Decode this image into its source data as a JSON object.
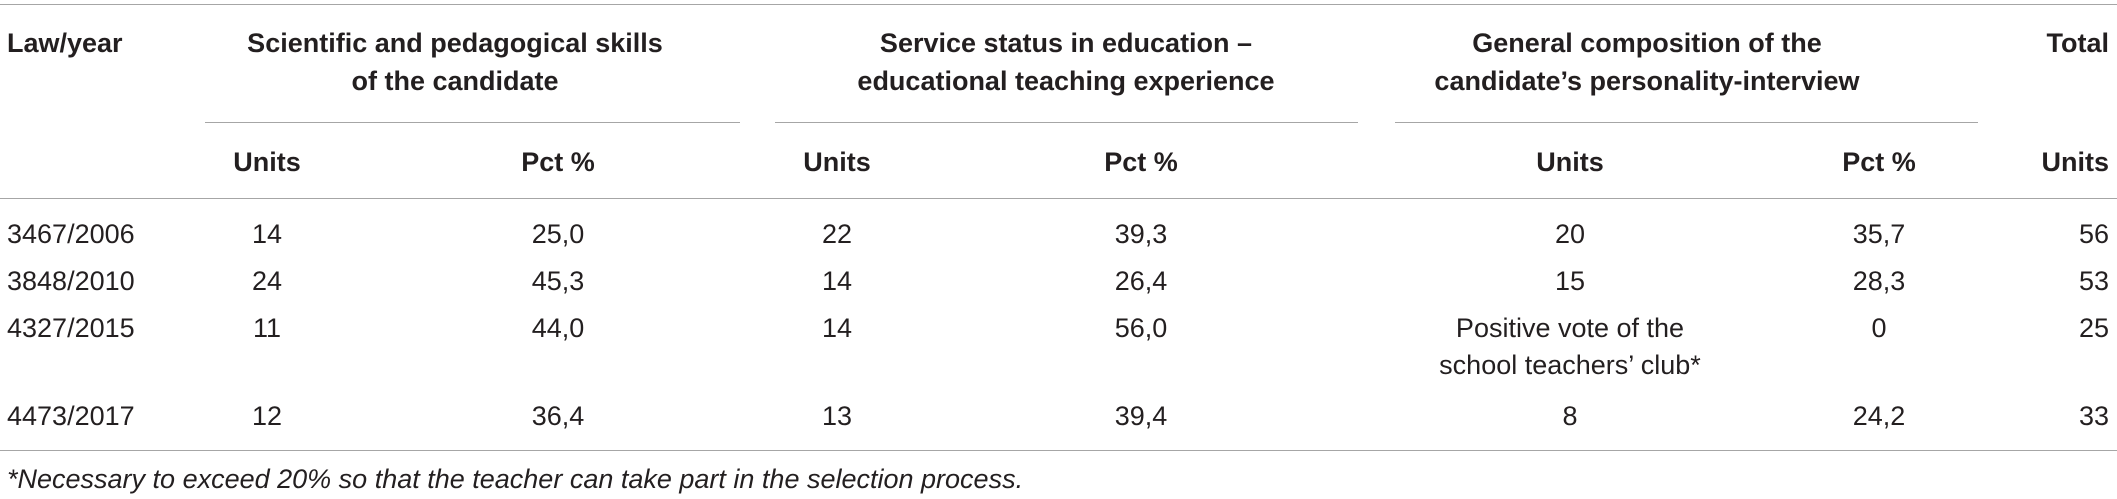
{
  "table": {
    "header": {
      "law": "Law/year",
      "groups": [
        [
          "Scientific and pedagogical skills",
          "of the candidate"
        ],
        [
          "Service status in education –",
          "educational teaching experience"
        ],
        [
          "General composition of the",
          "candidate’s personality-interview"
        ]
      ],
      "total": "Total"
    },
    "subheaders": [
      "Units",
      "Pct %",
      "Units",
      "Pct %",
      "Units",
      "Pct %",
      "Units"
    ],
    "rows": [
      [
        "3467/2006",
        "14",
        "25,0",
        "22",
        "39,3",
        "20",
        "35,7",
        "56"
      ],
      [
        "3848/2010",
        "24",
        "45,3",
        "14",
        "26,4",
        "15",
        "28,3",
        "53"
      ],
      [
        "4327/2015",
        "11",
        "44,0",
        "14",
        "56,0",
        [
          "Positive vote of the",
          "school teachers’ club*"
        ],
        "0",
        "25"
      ],
      [
        "4473/2017",
        "12",
        "36,4",
        "13",
        "39,4",
        "8",
        "24,2",
        "33"
      ]
    ],
    "footnote": "*Necessary to exceed 20% so that the teacher can take part in the selection process."
  }
}
